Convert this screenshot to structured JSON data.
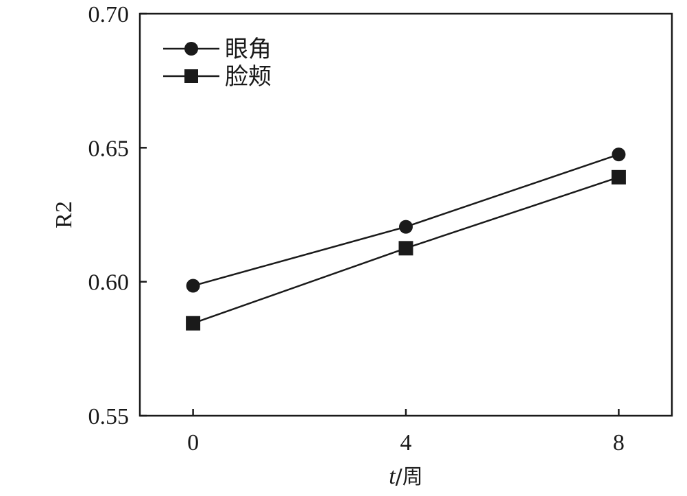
{
  "chart_data": {
    "type": "line",
    "x": [
      0,
      4,
      8
    ],
    "series": [
      {
        "name": "眼角",
        "marker": "circle",
        "values": [
          0.5985,
          0.6205,
          0.6475
        ]
      },
      {
        "name": "脸颊",
        "marker": "square",
        "values": [
          0.5845,
          0.6125,
          0.639
        ]
      }
    ],
    "xlabel_var": "t",
    "xlabel_unit": "/周",
    "ylabel": "R2",
    "xticks": [
      "0",
      "4",
      "8"
    ],
    "yticks": [
      "0.55",
      "0.60",
      "0.65",
      "0.70"
    ],
    "xlim": [
      -1,
      9
    ],
    "ylim": [
      0.55,
      0.7
    ],
    "grid": false,
    "legend_position": "top-left",
    "colors": {
      "line": "#1a1a1a",
      "marker": "#1a1a1a"
    }
  }
}
